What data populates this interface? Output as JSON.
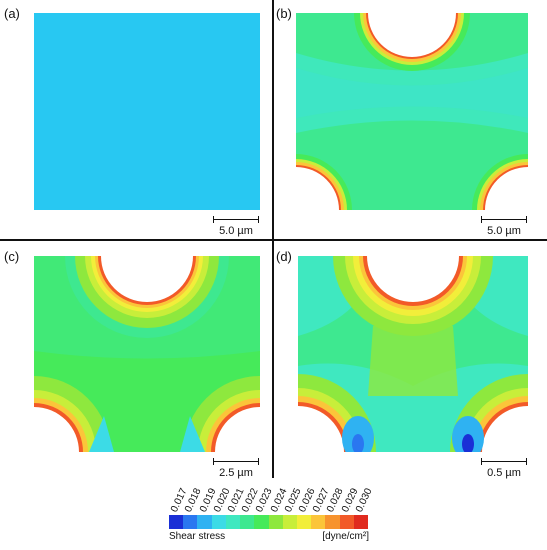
{
  "panels": [
    {
      "label": "(a)",
      "scale": "5.0 µm"
    },
    {
      "label": "(b)",
      "scale": "5.0 µm"
    },
    {
      "label": "(c)",
      "scale": "2.5 µm"
    },
    {
      "label": "(d)",
      "scale": "0.5 µm"
    }
  ],
  "legend": {
    "ticks": [
      "0.017",
      "0.018",
      "0.019",
      "0.020",
      "0.021",
      "0.022",
      "0.023",
      "0.024",
      "0.025",
      "0.026",
      "0.027",
      "0.028",
      "0.029",
      "0.030"
    ],
    "colors": [
      "#1a2fd6",
      "#2a77f0",
      "#2fb2f2",
      "#3cdbe6",
      "#3fe8c0",
      "#3ee890",
      "#46ea5a",
      "#8ee83e",
      "#c8ee3a",
      "#f2ee3a",
      "#fbc53a",
      "#f7932e",
      "#f25a28",
      "#e02a1e"
    ],
    "quantity": "Shear stress",
    "unit": "[dyne/cm²]"
  },
  "colors": {
    "uniform": "#28c8f2",
    "background_green": "#3fe37a",
    "light_green": "#46ea5a",
    "hole": "#ffffff"
  }
}
